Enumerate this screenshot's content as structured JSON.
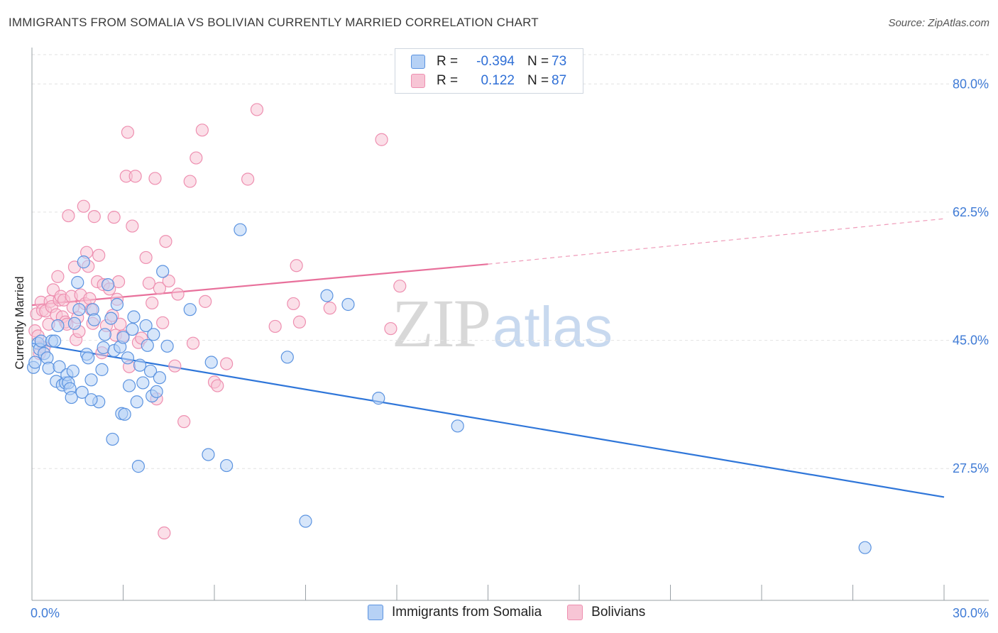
{
  "header": {
    "title": "IMMIGRANTS FROM SOMALIA VS BOLIVIAN CURRENTLY MARRIED CORRELATION CHART",
    "source": "Source: ZipAtlas.com"
  },
  "watermark": {
    "zip": "ZIP",
    "atlas": "atlas"
  },
  "legend": {
    "rows": [
      {
        "r_label": "R =",
        "r_value": "-0.394",
        "n_label": "N =",
        "n_value": "73"
      },
      {
        "r_label": "R =",
        "r_value": "0.122",
        "n_label": "N =",
        "n_value": "87"
      }
    ]
  },
  "colors": {
    "somalia_fill": "#b6d1f5",
    "somalia_stroke": "#5b93e0",
    "somalia_line": "#2f76d9",
    "bolivian_fill": "#f7c5d5",
    "bolivian_stroke": "#ee8fb0",
    "bolivian_line": "#e8709b",
    "grid": "#e2e2e2",
    "tick_text": "#3f7bd6"
  },
  "chart_data": {
    "type": "scatter",
    "title": "IMMIGRANTS FROM SOMALIA VS BOLIVIAN CURRENTLY MARRIED CORRELATION CHART",
    "xlabel": "",
    "ylabel": "Currently Married",
    "xlim": [
      0,
      30
    ],
    "ylim": [
      9.5,
      84
    ],
    "x_tick_labels": [
      "0.0%",
      "30.0%"
    ],
    "y_ticks": [
      80.0,
      62.5,
      45.0,
      27.5
    ],
    "y_tick_labels": [
      "80.0%",
      "62.5%",
      "45.0%",
      "27.5%"
    ],
    "grid": true,
    "legend_position": "top-center and bottom",
    "series": [
      {
        "name": "Immigrants from Somalia",
        "r": -0.394,
        "n": 73,
        "trend": {
          "x": [
            0.0,
            30.0
          ],
          "y": [
            44.6,
            23.6
          ]
        },
        "points": [
          [
            0.05,
            41.3
          ],
          [
            0.1,
            42.0
          ],
          [
            0.2,
            44.6
          ],
          [
            0.25,
            43.8
          ],
          [
            0.3,
            44.9
          ],
          [
            0.4,
            43.2
          ],
          [
            0.5,
            42.6
          ],
          [
            0.55,
            41.2
          ],
          [
            0.65,
            44.9
          ],
          [
            0.75,
            44.9
          ],
          [
            0.8,
            39.4
          ],
          [
            0.85,
            47.0
          ],
          [
            0.9,
            41.4
          ],
          [
            1.0,
            38.9
          ],
          [
            1.1,
            39.2
          ],
          [
            1.15,
            40.3
          ],
          [
            1.2,
            39.2
          ],
          [
            1.25,
            38.4
          ],
          [
            1.3,
            37.2
          ],
          [
            1.35,
            40.8
          ],
          [
            1.4,
            47.3
          ],
          [
            1.5,
            52.9
          ],
          [
            1.55,
            49.2
          ],
          [
            1.65,
            37.9
          ],
          [
            1.7,
            55.7
          ],
          [
            1.8,
            43.1
          ],
          [
            1.85,
            42.6
          ],
          [
            1.95,
            39.6
          ],
          [
            2.0,
            49.2
          ],
          [
            2.05,
            47.8
          ],
          [
            2.2,
            36.6
          ],
          [
            2.3,
            41.0
          ],
          [
            2.35,
            44.0
          ],
          [
            2.4,
            45.8
          ],
          [
            2.5,
            52.6
          ],
          [
            2.6,
            48.0
          ],
          [
            2.65,
            31.5
          ],
          [
            2.7,
            43.6
          ],
          [
            2.8,
            49.9
          ],
          [
            2.9,
            44.1
          ],
          [
            2.95,
            35.0
          ],
          [
            3.05,
            34.9
          ],
          [
            3.15,
            42.6
          ],
          [
            3.2,
            38.8
          ],
          [
            3.3,
            46.5
          ],
          [
            3.35,
            48.2
          ],
          [
            3.45,
            36.6
          ],
          [
            3.5,
            27.8
          ],
          [
            3.55,
            41.6
          ],
          [
            3.65,
            39.2
          ],
          [
            3.75,
            47.0
          ],
          [
            3.8,
            44.3
          ],
          [
            3.9,
            40.8
          ],
          [
            3.95,
            37.4
          ],
          [
            4.0,
            45.8
          ],
          [
            4.1,
            38.0
          ],
          [
            4.2,
            39.9
          ],
          [
            4.3,
            54.4
          ],
          [
            4.45,
            44.2
          ],
          [
            5.2,
            49.2
          ],
          [
            5.8,
            29.4
          ],
          [
            5.9,
            42.0
          ],
          [
            6.4,
            27.9
          ],
          [
            6.85,
            60.1
          ],
          [
            8.4,
            42.7
          ],
          [
            9.0,
            20.3
          ],
          [
            9.7,
            51.1
          ],
          [
            10.4,
            49.9
          ],
          [
            11.4,
            37.1
          ],
          [
            14.0,
            33.3
          ],
          [
            27.4,
            16.7
          ],
          [
            1.95,
            36.9
          ],
          [
            3.0,
            45.4
          ]
        ]
      },
      {
        "name": "Bolivians",
        "r": 0.122,
        "n": 87,
        "trend": {
          "x": [
            0.0,
            15.0
          ],
          "y": [
            49.8,
            55.4
          ]
        },
        "trend_dashed": {
          "x": [
            15.0,
            30.0
          ],
          "y": [
            55.4,
            61.6
          ]
        },
        "points": [
          [
            0.1,
            46.3
          ],
          [
            0.15,
            48.6
          ],
          [
            0.2,
            45.6
          ],
          [
            0.25,
            43.2
          ],
          [
            0.3,
            50.2
          ],
          [
            0.35,
            49.1
          ],
          [
            0.4,
            44.0
          ],
          [
            0.45,
            49.0
          ],
          [
            0.55,
            47.2
          ],
          [
            0.6,
            50.3
          ],
          [
            0.65,
            49.6
          ],
          [
            0.7,
            51.9
          ],
          [
            0.8,
            48.5
          ],
          [
            0.85,
            53.7
          ],
          [
            0.9,
            50.5
          ],
          [
            0.95,
            51.0
          ],
          [
            1.0,
            48.2
          ],
          [
            1.05,
            50.5
          ],
          [
            1.1,
            47.5
          ],
          [
            1.15,
            47.2
          ],
          [
            1.2,
            62.0
          ],
          [
            1.3,
            51.0
          ],
          [
            1.35,
            49.5
          ],
          [
            1.4,
            55.0
          ],
          [
            1.45,
            45.1
          ],
          [
            1.5,
            48.1
          ],
          [
            1.55,
            46.2
          ],
          [
            1.6,
            51.2
          ],
          [
            1.7,
            63.3
          ],
          [
            1.75,
            50.0
          ],
          [
            1.8,
            57.0
          ],
          [
            1.85,
            55.1
          ],
          [
            1.9,
            50.7
          ],
          [
            1.95,
            49.2
          ],
          [
            2.0,
            47.3
          ],
          [
            2.05,
            61.9
          ],
          [
            2.15,
            53.0
          ],
          [
            2.2,
            56.6
          ],
          [
            2.3,
            43.3
          ],
          [
            2.35,
            52.6
          ],
          [
            2.45,
            47.0
          ],
          [
            2.55,
            52.0
          ],
          [
            2.65,
            48.4
          ],
          [
            2.7,
            61.8
          ],
          [
            2.75,
            45.7
          ],
          [
            2.8,
            50.6
          ],
          [
            2.85,
            53.0
          ],
          [
            2.9,
            47.2
          ],
          [
            3.0,
            45.6
          ],
          [
            3.1,
            67.4
          ],
          [
            3.15,
            73.4
          ],
          [
            3.2,
            41.4
          ],
          [
            3.3,
            60.6
          ],
          [
            3.4,
            67.4
          ],
          [
            3.5,
            44.7
          ],
          [
            3.6,
            45.3
          ],
          [
            3.75,
            56.3
          ],
          [
            3.85,
            52.8
          ],
          [
            3.95,
            50.1
          ],
          [
            4.05,
            67.1
          ],
          [
            4.1,
            37.0
          ],
          [
            4.2,
            52.1
          ],
          [
            4.3,
            47.4
          ],
          [
            4.35,
            18.7
          ],
          [
            4.4,
            58.5
          ],
          [
            4.5,
            53.1
          ],
          [
            4.7,
            41.5
          ],
          [
            5.0,
            33.9
          ],
          [
            5.2,
            66.7
          ],
          [
            5.3,
            44.6
          ],
          [
            5.4,
            69.9
          ],
          [
            5.6,
            73.7
          ],
          [
            5.7,
            50.3
          ],
          [
            6.0,
            39.3
          ],
          [
            6.1,
            38.8
          ],
          [
            6.4,
            41.8
          ],
          [
            7.1,
            67.0
          ],
          [
            7.4,
            76.5
          ],
          [
            8.0,
            46.9
          ],
          [
            8.6,
            50.0
          ],
          [
            8.7,
            55.2
          ],
          [
            8.8,
            47.5
          ],
          [
            9.8,
            49.4
          ],
          [
            11.5,
            72.4
          ],
          [
            11.8,
            46.6
          ],
          [
            12.1,
            52.4
          ],
          [
            4.8,
            51.3
          ]
        ]
      }
    ]
  }
}
